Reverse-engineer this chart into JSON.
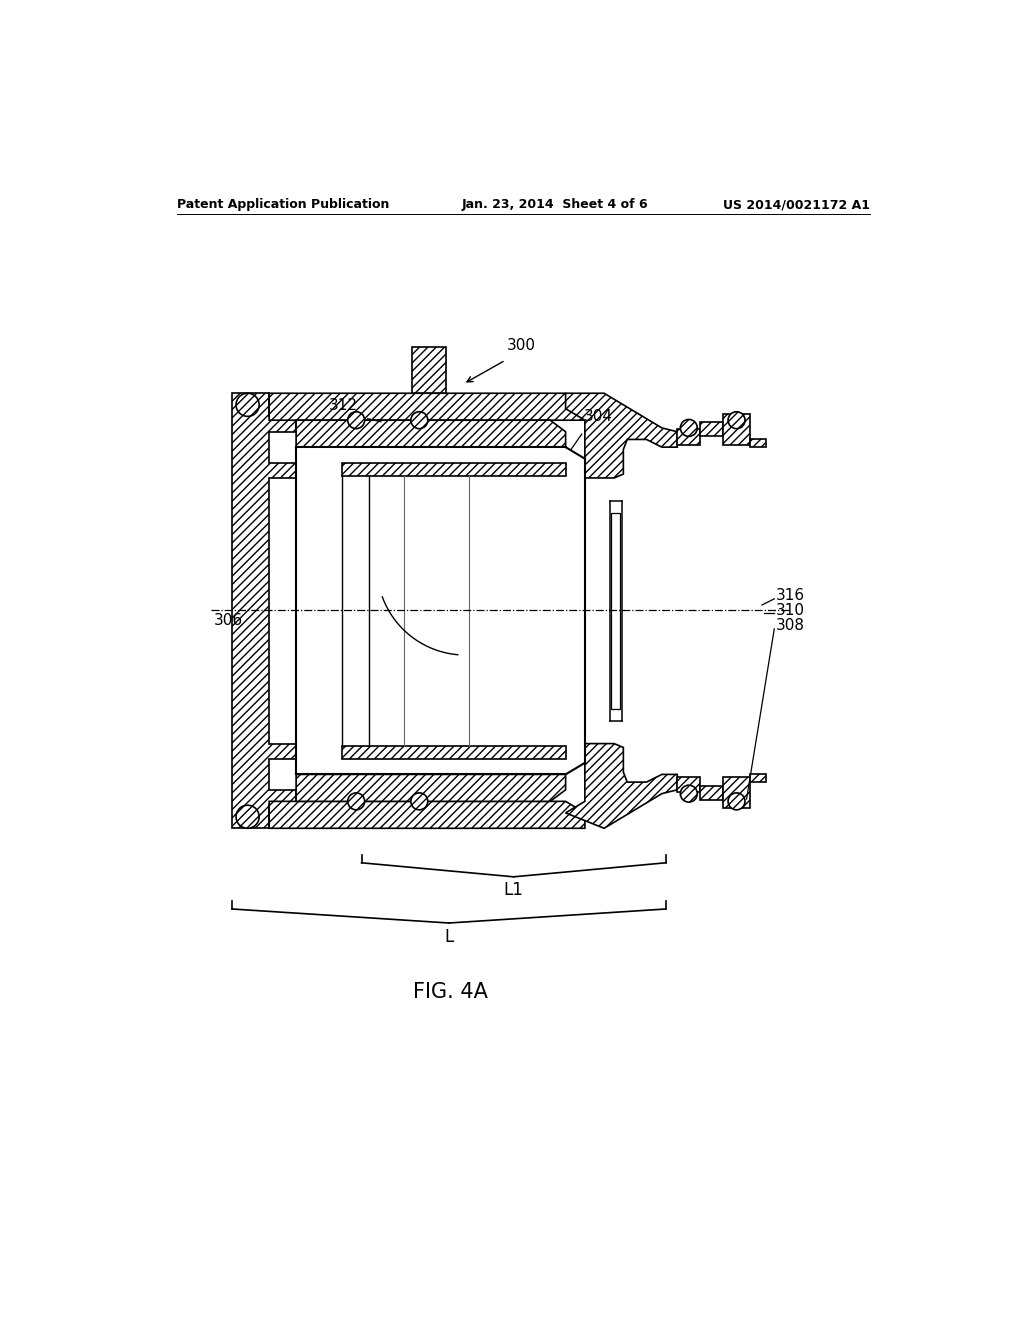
{
  "header_left": "Patent Application Publication",
  "header_mid": "Jan. 23, 2014  Sheet 4 of 6",
  "header_right": "US 2014/0021172 A1",
  "figure_label": "FIG. 4A",
  "ref_300": "300",
  "ref_312": "312",
  "ref_304": "304",
  "ref_306": "306",
  "ref_308": "308",
  "ref_310": "310",
  "ref_316": "316",
  "ref_L": "L",
  "ref_L1": "L1",
  "bg_color": "#ffffff",
  "line_color": "#000000",
  "hatch_pattern": "////"
}
